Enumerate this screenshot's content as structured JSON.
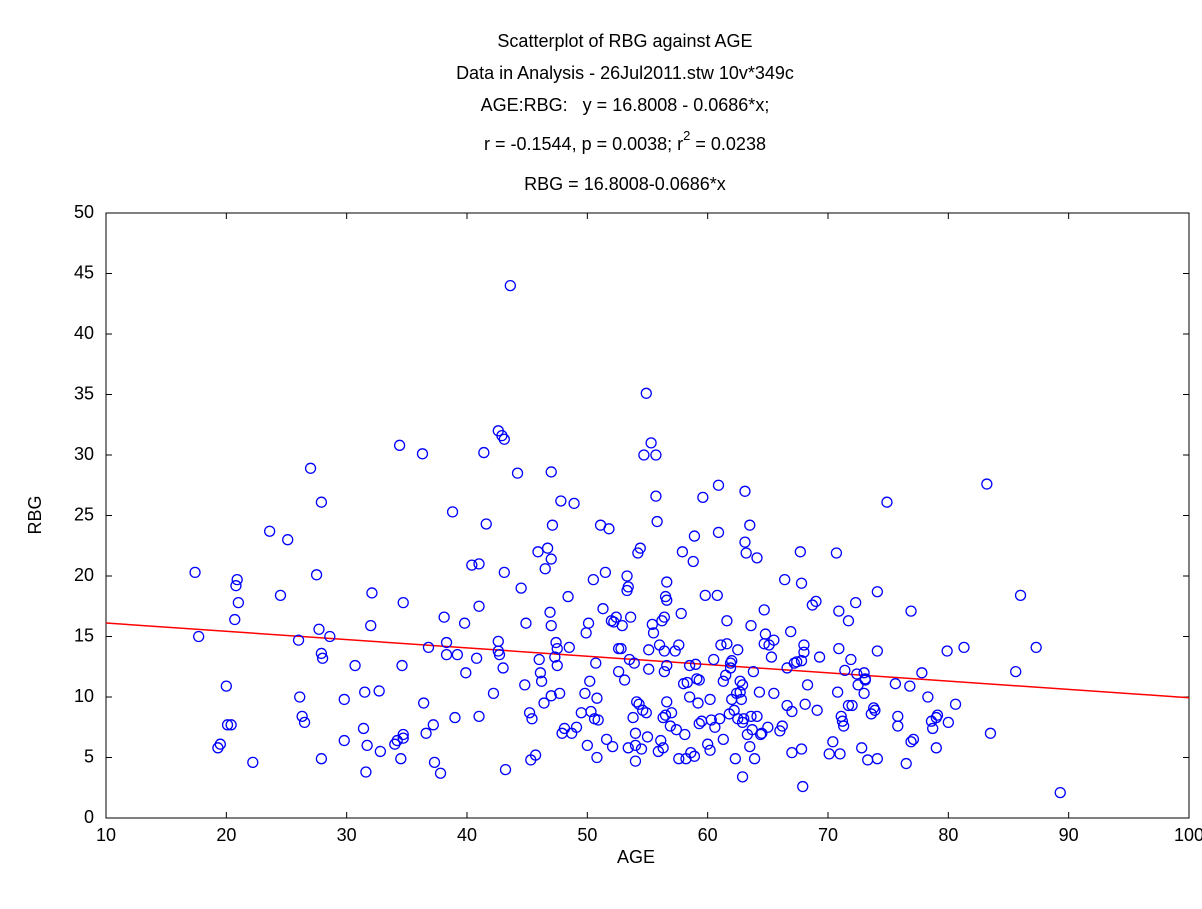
{
  "chart_data": {
    "type": "scatter",
    "title": "Scatterplot of RBG against AGE",
    "subtitle": "Data in Analysis - 26Jul2011.stw 10v*349c",
    "equation": "AGE:RBG:   y = 16.8008 - 0.0686*x;",
    "stats": {
      "before": "r = -0.1544, p = 0.0038; r",
      "sup": "2",
      "after": " = 0.0238"
    },
    "fit_label": "RBG = 16.8008-0.0686*x",
    "x_label": "AGE",
    "y_label": "RBG",
    "color": "#0000ff",
    "fit": {
      "intercept": 16.8008,
      "slope": -0.0686,
      "color": "#ff0000"
    },
    "xlim": [
      10,
      100
    ],
    "xticks": [
      10,
      20,
      30,
      40,
      50,
      60,
      70,
      80,
      90,
      100
    ],
    "ylim": [
      0,
      50
    ],
    "yticks": [
      0,
      5,
      10,
      15,
      20,
      25,
      30,
      35,
      40,
      45,
      50
    ],
    "x": [
      17.4,
      17.7,
      19.3,
      19.5,
      20,
      20.1,
      20.4,
      20.7,
      20.8,
      20.9,
      21,
      22.2,
      23.6,
      24.5,
      25.1,
      26,
      26.1,
      26.3,
      26.5,
      27,
      27.5,
      27.7,
      27.9,
      27.9,
      28,
      27.9,
      28.6,
      29.8,
      29.8,
      30.7,
      31.4,
      31.5,
      31.6,
      31.7,
      32,
      32.1,
      32.7,
      32.8,
      34,
      34.2,
      34.4,
      34.5,
      34.6,
      34.7,
      34.7,
      34.7,
      36.3,
      36.4,
      36.6,
      36.8,
      37.2,
      37.3,
      37.8,
      38.1,
      38.3,
      38.3,
      38.8,
      39,
      39.2,
      39.9,
      39.8,
      40.4,
      40.8,
      41,
      41,
      41,
      41.4,
      41.6,
      42.2,
      42.6,
      42.6,
      42.6,
      42.7,
      42.9,
      43,
      43.1,
      43.1,
      43.2,
      43.6,
      44.2,
      44.5,
      44.8,
      44.9,
      45.2,
      45.3,
      45.4,
      45.7,
      45.9,
      46,
      46.1,
      46.2,
      46.4,
      46.5,
      46.7,
      46.9,
      47,
      47,
      47,
      47,
      47.1,
      47.3,
      47.4,
      47.5,
      47.5,
      47.7,
      47.8,
      47.9,
      48.1,
      48.4,
      48.5,
      48.7,
      48.9,
      49.1,
      49.5,
      49.8,
      49.9,
      50,
      50.1,
      50.2,
      50.3,
      50.5,
      50.6,
      50.7,
      50.8,
      50.8,
      50.9,
      51.1,
      51.3,
      51.5,
      51.6,
      51.8,
      52,
      52.1,
      52.2,
      52.4,
      52.6,
      52.6,
      52.8,
      52.9,
      53.1,
      53.3,
      53.3,
      53.4,
      53.4,
      53.5,
      53.6,
      53.8,
      53.9,
      54,
      54,
      54,
      54.1,
      54.2,
      54.3,
      54.4,
      54.5,
      54.6,
      54.7,
      54.9,
      54.9,
      55,
      55.1,
      55.1,
      55.3,
      55.4,
      55.5,
      55.7,
      55.7,
      55.8,
      55.9,
      56,
      56.1,
      56.2,
      56.3,
      56.3,
      56.4,
      56.4,
      56.4,
      56.6,
      56.5,
      56.6,
      56.6,
      56.5,
      56.6,
      56.9,
      57,
      57.3,
      57.4,
      57.6,
      57.6,
      57.8,
      57.9,
      58,
      58.1,
      58.2,
      58.3,
      58.5,
      58.5,
      58.6,
      58.8,
      58.9,
      58.9,
      59,
      59.1,
      59.2,
      59.3,
      59.5,
      59.6,
      59.8,
      60,
      60.2,
      60.2,
      60.3,
      60.5,
      60.6,
      60.8,
      60.9,
      60.9,
      61,
      61.1,
      61.3,
      61.3,
      61.5,
      61.6,
      61.6,
      61.8,
      61.9,
      62,
      62,
      62.3,
      62.4,
      62.5,
      62.5,
      62.7,
      62.7,
      62.8,
      62.9,
      62.9,
      62.9,
      63,
      63.1,
      63.1,
      63.2,
      63.3,
      63.5,
      63.5,
      63.6,
      63.6,
      63.7,
      63.8,
      63.9,
      64.1,
      64.1,
      64.3,
      64.4,
      64.5,
      64.7,
      64.7,
      64.8,
      65,
      65.1,
      65.3,
      65.5,
      65.5,
      66,
      66.2,
      66.4,
      66.6,
      66.6,
      66.9,
      67,
      67,
      67.2,
      67.4,
      67.7,
      67.8,
      67.8,
      67.8,
      67.9,
      68,
      68,
      68.1,
      68.3,
      68.7,
      69,
      69.1,
      69.3,
      70.1,
      70.4,
      70.7,
      70.8,
      70.9,
      70.9,
      71,
      71.1,
      71.2,
      71.3,
      71.4,
      71.7,
      71.7,
      71.9,
      72,
      72.3,
      72.4,
      72.5,
      72.8,
      73,
      73,
      73.1,
      73.1,
      73.3,
      73.6,
      73.8,
      73.9,
      74.1,
      74.1,
      74.1,
      74.9,
      75.6,
      75.8,
      75.8,
      76.5,
      76.8,
      76.9,
      76.9,
      77.1,
      77.8,
      78.3,
      78.6,
      78.7,
      79,
      79,
      79.1,
      79.9,
      80,
      80.6,
      81.3,
      83.2,
      83.5,
      85.6,
      86,
      87.3,
      89.3,
      61.9,
      59.3,
      62.2
    ],
    "values": [
      20.3,
      15,
      5.8,
      6.1,
      10.9,
      7.7,
      7.7,
      16.4,
      19.2,
      19.7,
      17.8,
      4.6,
      23.7,
      18.4,
      23,
      14.7,
      10,
      8.4,
      7.9,
      28.9,
      20.1,
      15.6,
      4.9,
      13.6,
      13.2,
      26.1,
      15,
      9.8,
      6.4,
      12.6,
      7.4,
      10.4,
      3.8,
      6,
      15.9,
      18.6,
      10.5,
      5.5,
      6.1,
      6.4,
      30.8,
      4.9,
      12.6,
      6.6,
      6.9,
      17.8,
      30.1,
      9.5,
      7,
      14.1,
      7.7,
      4.6,
      3.7,
      16.6,
      14.5,
      13.5,
      25.3,
      8.3,
      13.5,
      12,
      16.1,
      20.9,
      13.2,
      8.4,
      17.5,
      21,
      30.2,
      24.3,
      10.3,
      32,
      13.8,
      14.6,
      13.5,
      31.6,
      12.4,
      31.3,
      20.3,
      4,
      44,
      28.5,
      19,
      11,
      16.1,
      8.7,
      4.8,
      8.2,
      5.2,
      22,
      13.1,
      12,
      11.3,
      9.5,
      20.6,
      22.3,
      17,
      28.6,
      15.9,
      10.1,
      21.4,
      24.2,
      13.3,
      14.5,
      12.6,
      14,
      10.3,
      26.2,
      7,
      7.4,
      18.3,
      14.1,
      7,
      26,
      7.5,
      8.7,
      10.3,
      15.3,
      6,
      16.1,
      11.3,
      8.8,
      19.7,
      8.2,
      12.8,
      5,
      9.9,
      8.1,
      24.2,
      17.3,
      20.3,
      6.5,
      23.9,
      16.3,
      5.9,
      16.2,
      16.6,
      14,
      12.1,
      14,
      15.9,
      11.4,
      20,
      18.8,
      19.1,
      5.8,
      13.1,
      16.6,
      8.3,
      12.8,
      6,
      7,
      4.7,
      9.6,
      21.9,
      9.4,
      22.3,
      5.7,
      8.9,
      30,
      35.1,
      8.7,
      6.7,
      12.3,
      13.9,
      31,
      16,
      15.3,
      26.6,
      30,
      24.5,
      5.5,
      14.3,
      6.4,
      16.3,
      8.3,
      5.8,
      12.1,
      16.6,
      13.8,
      9.6,
      18.3,
      18,
      19.5,
      8.5,
      12.6,
      7.6,
      8.7,
      13.8,
      7.3,
      4.9,
      14.3,
      16.9,
      22,
      11.1,
      6.9,
      4.9,
      11.2,
      12.6,
      10,
      5.4,
      21.2,
      23.3,
      5.1,
      12.7,
      11.5,
      9.5,
      7.8,
      8,
      26.5,
      18.4,
      6.1,
      5.6,
      9.8,
      8.1,
      13.1,
      7.5,
      18.4,
      27.5,
      23.6,
      8.2,
      14.3,
      6.5,
      11.3,
      11.8,
      16.3,
      14.4,
      8.6,
      12.8,
      13,
      9.8,
      4.9,
      10.3,
      8.2,
      13.9,
      11.3,
      10.4,
      9.8,
      3.4,
      11,
      7.9,
      8.2,
      27,
      22.8,
      21.9,
      6.9,
      24.2,
      5.9,
      8.4,
      15.9,
      7.3,
      12.1,
      4.9,
      8.4,
      21.5,
      10.4,
      6.9,
      7,
      17.2,
      14.4,
      15.2,
      7.5,
      14.3,
      13.3,
      10.3,
      14.7,
      7.2,
      7.6,
      19.7,
      12.4,
      9.3,
      15.4,
      8.8,
      5.4,
      12.8,
      12.9,
      22,
      19.4,
      5.7,
      13,
      2.6,
      13.7,
      14.3,
      9.4,
      11,
      17.6,
      17.9,
      8.9,
      13.3,
      5.3,
      6.3,
      21.9,
      10.4,
      17.1,
      14,
      5.3,
      8.4,
      8,
      7.6,
      12.2,
      9.3,
      16.3,
      13.1,
      9.3,
      17.8,
      11.9,
      11,
      5.8,
      12,
      10.3,
      11.4,
      11.5,
      4.8,
      8.6,
      9.1,
      8.9,
      18.7,
      4.9,
      13.8,
      26.1,
      11.1,
      7.6,
      8.4,
      4.5,
      10.9,
      17.1,
      6.3,
      6.5,
      12,
      10,
      8,
      7.4,
      8.3,
      5.8,
      8.5,
      13.8,
      7.9,
      9.4,
      14.1,
      27.6,
      7,
      12.1,
      18.4,
      14.1,
      2.1,
      12.4,
      11.4,
      8.9
    ]
  }
}
